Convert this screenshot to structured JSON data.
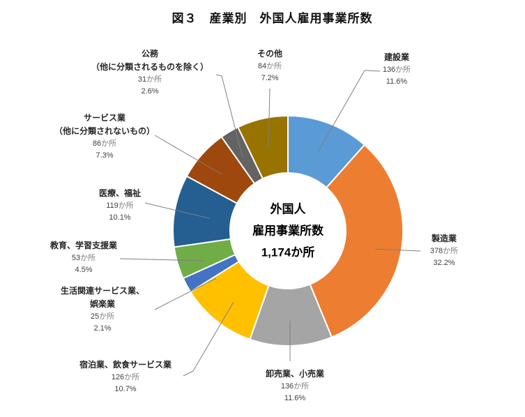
{
  "chart_data": {
    "type": "pie",
    "subtype": "donut",
    "title": "図３　産業別　外国人雇用事業所数",
    "center_text": [
      "外国人",
      "雇用事業所数",
      "1,174か所"
    ],
    "total": 1174,
    "unit": "か所",
    "start_angle_deg": 0,
    "direction": "clockwise",
    "legend": "none",
    "labels_position": "outside-with-leader-lines",
    "leader_line_color": "#7f7f7f",
    "slices": [
      {
        "name": "建設業",
        "name_lines": [
          "建設業"
        ],
        "value": 136,
        "count_label": "136か所",
        "pct_label": "11.6%",
        "color": "#5B9BD5"
      },
      {
        "name": "製造業",
        "name_lines": [
          "製造業"
        ],
        "value": 378,
        "count_label": "378か所",
        "pct_label": "32.2%",
        "color": "#ED7D31"
      },
      {
        "name": "卸売業、小売業",
        "name_lines": [
          "卸売業、小売業"
        ],
        "value": 136,
        "count_label": "136か所",
        "pct_label": "11.6%",
        "color": "#A5A5A5"
      },
      {
        "name": "宿泊業、飲食サービス業",
        "name_lines": [
          "宿泊業、飲食サービス業"
        ],
        "value": 126,
        "count_label": "126か所",
        "pct_label": "10.7%",
        "color": "#FFC000"
      },
      {
        "name": "生活関連サービス業、娯楽業",
        "name_lines": [
          "生活関連サービス業、",
          "娯楽業"
        ],
        "value": 25,
        "count_label": "25か所",
        "pct_label": "2.1%",
        "color": "#4472C4"
      },
      {
        "name": "教育、学習支援業",
        "name_lines": [
          "教育、学習支援業"
        ],
        "value": 53,
        "count_label": "53か所",
        "pct_label": "4.5%",
        "color": "#70AD47"
      },
      {
        "name": "医療、福祉",
        "name_lines": [
          "医療、福祉"
        ],
        "value": 119,
        "count_label": "119か所",
        "pct_label": "10.1%",
        "color": "#255E91"
      },
      {
        "name": "サービス業（他に分類されないもの）",
        "name_lines": [
          "サービス業",
          "（他に分類されないもの）"
        ],
        "value": 86,
        "count_label": "86か所",
        "pct_label": "7.3%",
        "color": "#9E480E"
      },
      {
        "name": "公務（他に分類されるものを除く）",
        "name_lines": [
          "公務",
          "（他に分類されるものを除く）"
        ],
        "value": 31,
        "count_label": "31か所",
        "pct_label": "2.6%",
        "color": "#636363"
      },
      {
        "name": "その他",
        "name_lines": [
          "その他"
        ],
        "value": 84,
        "count_label": "84か所",
        "pct_label": "7.2%",
        "color": "#997300"
      }
    ]
  }
}
